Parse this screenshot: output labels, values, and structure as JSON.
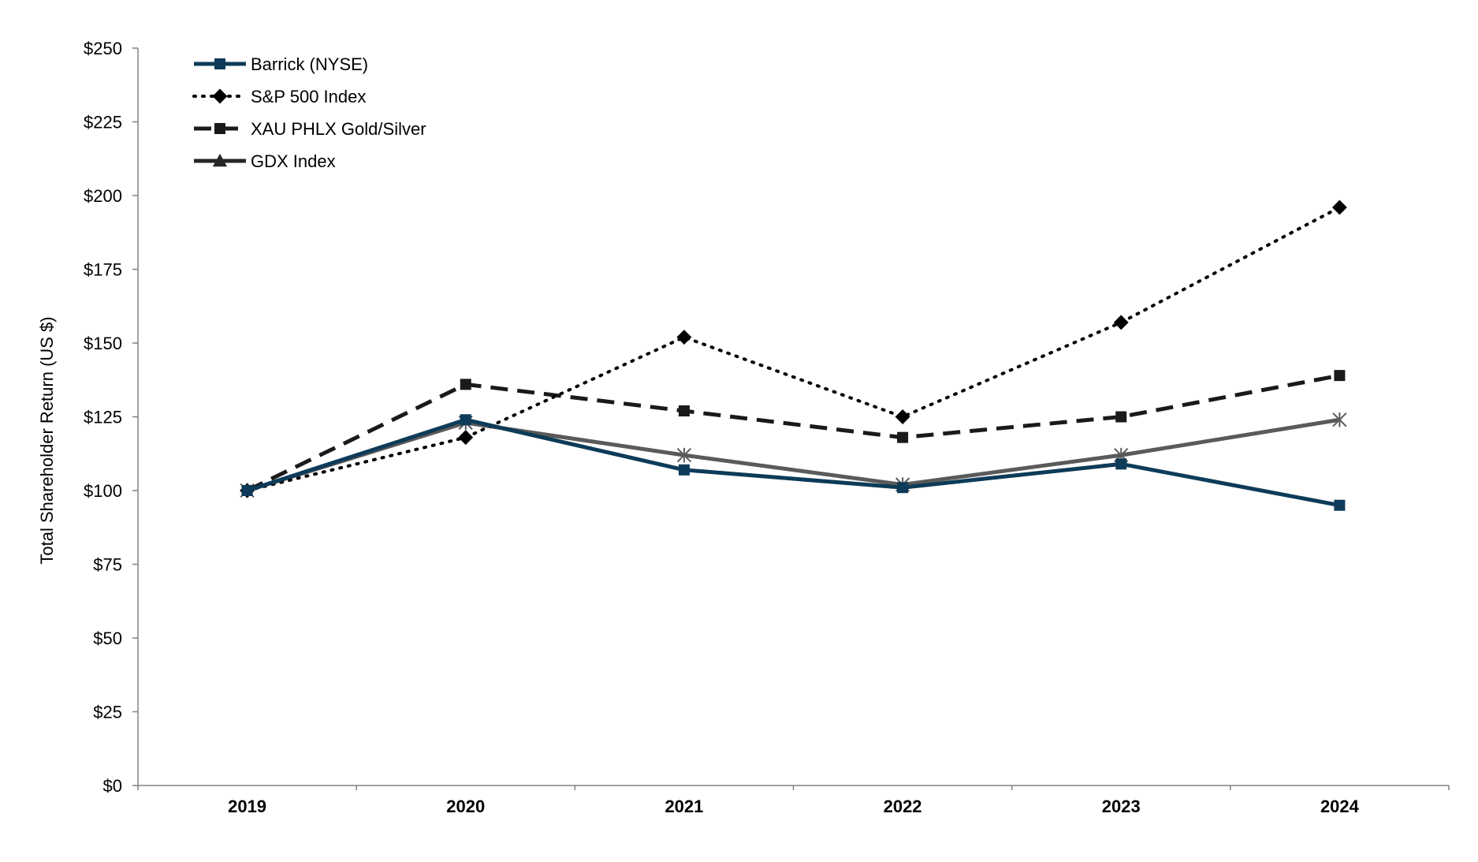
{
  "chart_data": {
    "type": "line",
    "title": "",
    "xlabel": "",
    "ylabel": "Total Shareholder Return (US $)",
    "categories": [
      "2019",
      "2020",
      "2021",
      "2022",
      "2023",
      "2024"
    ],
    "ylim": [
      0,
      250
    ],
    "yticks": [
      0,
      25,
      50,
      75,
      100,
      125,
      150,
      175,
      200,
      225,
      250
    ],
    "ytick_labels": [
      "$0",
      "$25",
      "$50",
      "$75",
      "$100",
      "$125",
      "$150",
      "$175",
      "$200",
      "$225",
      "$250"
    ],
    "grid": false,
    "legend_position": "top-left",
    "series": [
      {
        "name": "Barrick (NYSE)",
        "values": [
          100,
          124,
          107,
          101,
          109,
          95
        ],
        "color": "#0d3b59",
        "style": "solid",
        "marker": "square"
      },
      {
        "name": "S&P 500 Index",
        "values": [
          100,
          118,
          152,
          125,
          157,
          196
        ],
        "color": "#000000",
        "style": "dotted",
        "marker": "diamond"
      },
      {
        "name": "XAU PHLX Gold/Silver",
        "values": [
          100,
          136,
          127,
          118,
          125,
          139
        ],
        "color": "#1a1a1a",
        "style": "dashed",
        "marker": "square"
      },
      {
        "name": "GDX Index",
        "values": [
          100,
          123,
          112,
          102,
          112,
          124
        ],
        "color": "#5a5a5a",
        "style": "solid",
        "marker": "star",
        "legend_color": "#262626",
        "legend_marker": "triangle"
      }
    ]
  }
}
